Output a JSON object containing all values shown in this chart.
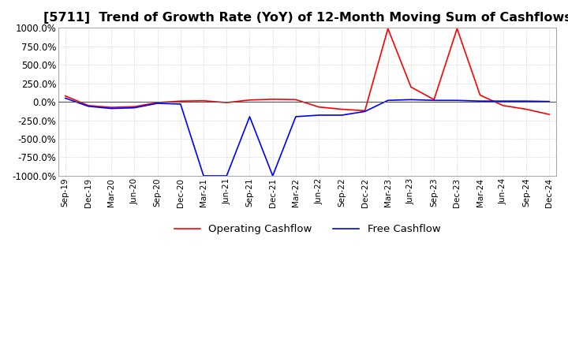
{
  "title": "[5711]  Trend of Growth Rate (YoY) of 12-Month Moving Sum of Cashflows",
  "title_fontsize": 11.5,
  "ylim": [
    -1000,
    1000
  ],
  "yticks": [
    -1000,
    -750,
    -500,
    -250,
    0,
    250,
    500,
    750,
    1000
  ],
  "operating_color": "#FF0000",
  "free_color": "#0000FF",
  "background_color": "#FFFFFF",
  "grid_color": "#BBBBBB",
  "legend_labels": [
    "Operating Cashflow",
    "Free Cashflow"
  ],
  "x_labels": [
    "Sep-19",
    "Dec-19",
    "Mar-20",
    "Jun-20",
    "Sep-20",
    "Dec-20",
    "Mar-21",
    "Jun-21",
    "Sep-21",
    "Dec-21",
    "Mar-22",
    "Jun-22",
    "Sep-22",
    "Dec-22",
    "Mar-23",
    "Jun-23",
    "Sep-23",
    "Dec-23",
    "Mar-24",
    "Jun-24",
    "Sep-24",
    "Dec-24"
  ],
  "operating_cashflow": [
    80,
    -50,
    -75,
    -65,
    -10,
    10,
    15,
    -10,
    25,
    35,
    30,
    -70,
    -100,
    -120,
    990,
    200,
    30,
    990,
    90,
    -50,
    -100,
    -170
  ],
  "free_cashflow": [
    50,
    -60,
    -90,
    -80,
    -20,
    -30,
    -1000,
    -1000,
    -200,
    -1000,
    -200,
    -180,
    -180,
    -130,
    20,
    30,
    20,
    20,
    10,
    10,
    10,
    5
  ]
}
